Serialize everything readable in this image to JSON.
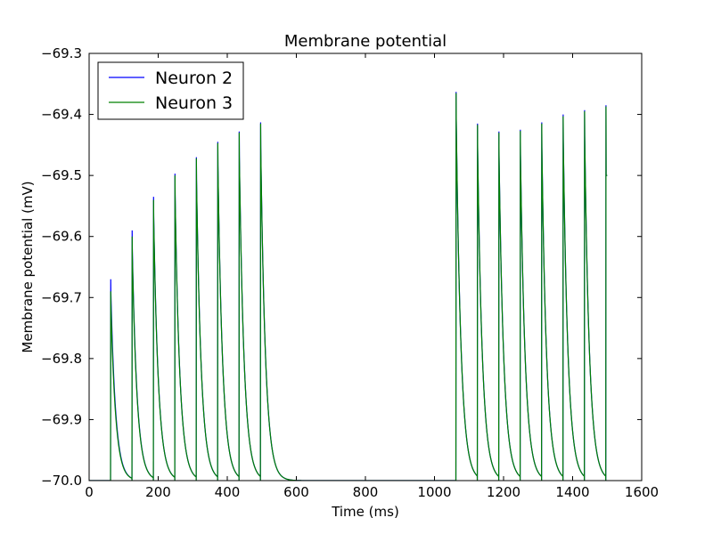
{
  "chart_data": {
    "type": "line",
    "title": "Membrane potential",
    "xlabel": "Time (ms)",
    "ylabel": "Membrane potential (mV)",
    "xlim": [
      0,
      1600
    ],
    "ylim": [
      -70.0,
      -69.3
    ],
    "xticks": [
      0,
      200,
      400,
      600,
      800,
      1000,
      1200,
      1400,
      1600
    ],
    "yticks": [
      -70.0,
      -69.9,
      -69.8,
      -69.7,
      -69.6,
      -69.5,
      -69.4,
      -69.3
    ],
    "xtick_labels": [
      "0",
      "200",
      "400",
      "600",
      "800",
      "1000",
      "1200",
      "1400",
      "1600"
    ],
    "ytick_labels": [
      "−70.0",
      "−69.9",
      "−69.8",
      "−69.7",
      "−69.6",
      "−69.5",
      "−69.4",
      "−69.3"
    ],
    "grid": false,
    "legend_position": "top-left",
    "x_end": 1500,
    "final_value": -69.5,
    "series": [
      {
        "name": "Neuron 2",
        "color": "#0000ff",
        "spike_times": [
          62,
          124,
          186,
          248,
          310,
          372,
          434,
          496,
          1062,
          1124,
          1186,
          1248,
          1310,
          1372,
          1434,
          1496
        ],
        "spike_peaks": [
          -69.67,
          -69.59,
          -69.535,
          -69.497,
          -69.47,
          -69.445,
          -69.428,
          -69.413,
          -69.363,
          -69.415,
          -69.428,
          -69.425,
          -69.413,
          -69.4,
          -69.393,
          -69.385
        ]
      },
      {
        "name": "Neuron 3",
        "color": "#008000",
        "spike_times": [
          62,
          124,
          186,
          248,
          310,
          372,
          434,
          496,
          1062,
          1124,
          1186,
          1248,
          1310,
          1372,
          1434,
          1496
        ],
        "spike_peaks": [
          -69.69,
          -69.6,
          -69.54,
          -69.5,
          -69.472,
          -69.447,
          -69.43,
          -69.415,
          -69.365,
          -69.417,
          -69.43,
          -69.427,
          -69.415,
          -69.403,
          -69.395,
          -69.387
        ]
      }
    ]
  }
}
